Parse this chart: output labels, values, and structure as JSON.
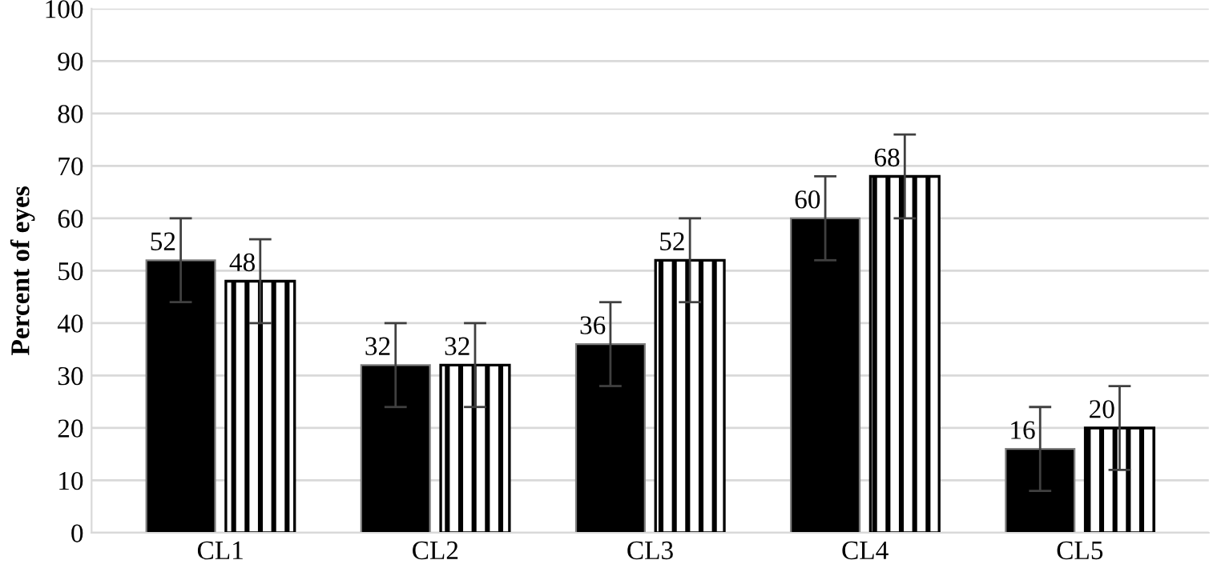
{
  "chart_data": {
    "type": "bar",
    "ylabel": "Percent of eyes",
    "categories": [
      "CL1",
      "CL2",
      "CL3",
      "CL4",
      "CL5"
    ],
    "series": [
      {
        "color": "#000000",
        "values": [
          52,
          32,
          36,
          60,
          16
        ],
        "errors": [
          8,
          8,
          8,
          8,
          8
        ]
      },
      {
        "color": "#000000",
        "values": [
          48,
          32,
          52,
          68,
          20
        ],
        "errors": [
          8,
          8,
          8,
          8,
          8
        ]
      }
    ],
    "ylim": [
      0,
      100
    ],
    "yticks": [
      0,
      10,
      20,
      30,
      40,
      50,
      60,
      70,
      80,
      90,
      100
    ],
    "grid": "y",
    "data_labels": true,
    "legend": false
  }
}
